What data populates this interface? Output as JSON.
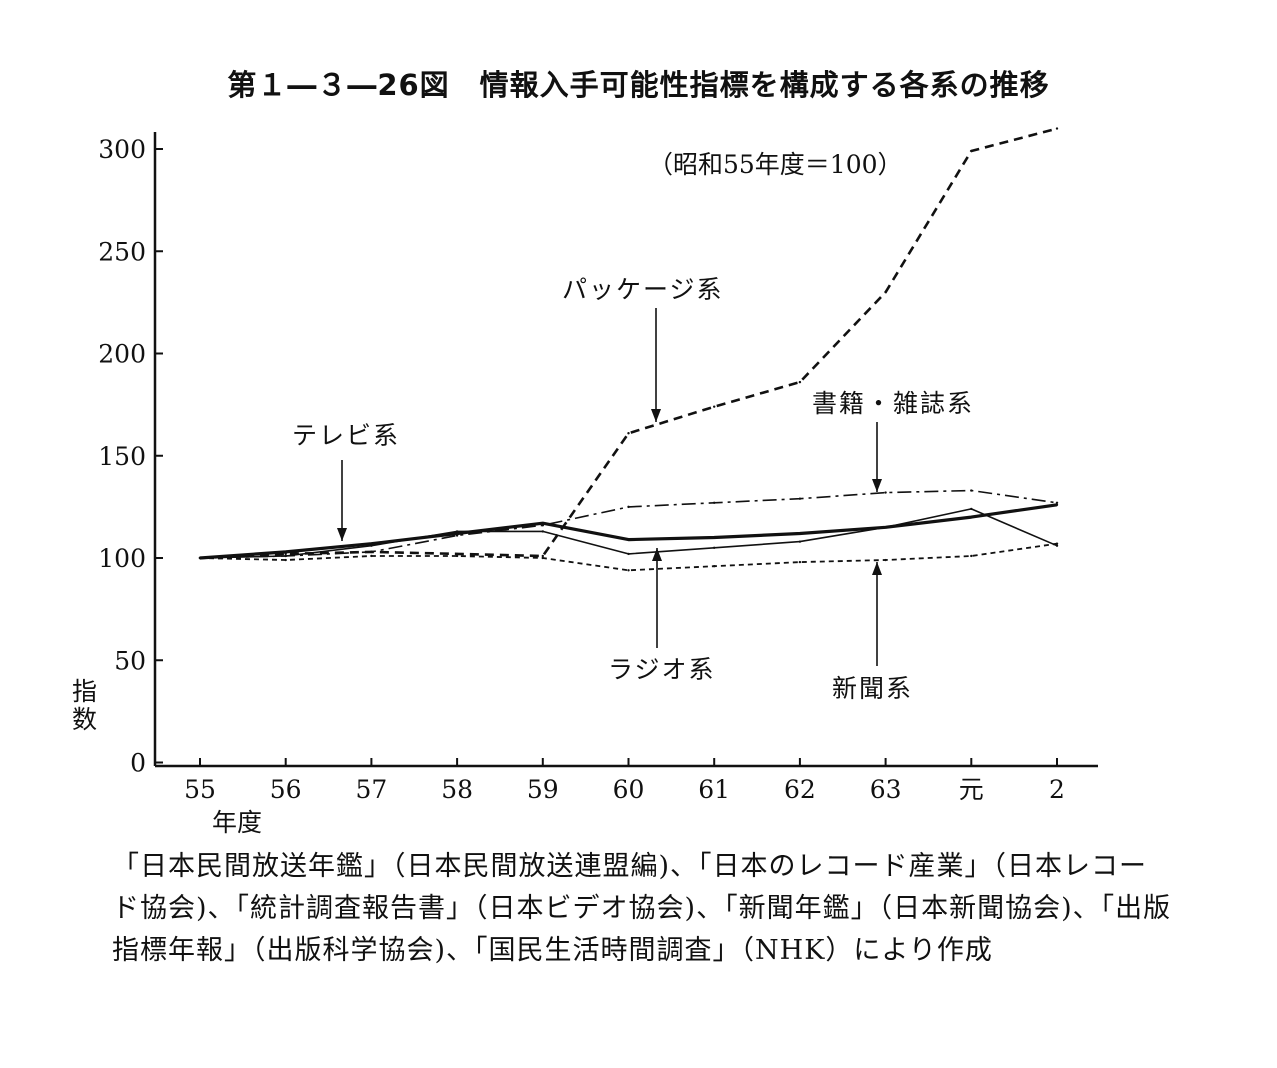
{
  "title": "第１―３―26図　情報入手可能性指標を構成する各系の推移",
  "source_note": "「日本民間放送年鑑」（日本民間放送連盟編)、「日本のレコード産業」（日本レコード協会)、「統計調査報告書」（日本ビデオ協会)、「新聞年鑑」（日本新聞協会)、「出版指標年報」（出版科学協会)、「国民生活時間調査」（NHK）により作成",
  "chart_data": {
    "type": "line",
    "annotation": "（昭和55年度＝100）",
    "xlabel": "年度",
    "ylabel": "指数",
    "categories": [
      "55",
      "56",
      "57",
      "58",
      "59",
      "60",
      "61",
      "62",
      "63",
      "元",
      "2"
    ],
    "y_ticks": [
      "0",
      "50",
      "100",
      "150",
      "200",
      "250",
      "300"
    ],
    "ylim": [
      0,
      300
    ],
    "grid": false,
    "series": [
      {
        "name": "パッケージ系",
        "style": "dashed",
        "values": [
          100,
          102,
          103,
          102,
          101,
          161,
          174,
          186,
          230,
          299,
          310
        ]
      },
      {
        "name": "書籍・雑誌系",
        "style": "dash-dot",
        "values": [
          100,
          101,
          103,
          111,
          116,
          125,
          127,
          129,
          132,
          133,
          127
        ]
      },
      {
        "name": "テレビ系",
        "style": "solid-thick",
        "values": [
          100,
          103,
          107,
          112,
          117,
          109,
          110,
          112,
          115,
          120,
          126
        ]
      },
      {
        "name": "ラジオ系",
        "style": "solid-thin",
        "values": [
          100,
          101,
          106,
          113,
          113,
          102,
          105,
          108,
          115,
          124,
          106
        ]
      },
      {
        "name": "新聞系",
        "style": "short-dashed",
        "values": [
          100,
          99,
          101,
          101,
          100,
          94,
          96,
          98,
          99,
          101,
          107
        ]
      }
    ],
    "callouts": [
      {
        "series": "パッケージ系",
        "text": "パッケージ系"
      },
      {
        "series": "書籍・雑誌系",
        "text": "書籍・雑誌系"
      },
      {
        "series": "テレビ系",
        "text": "テレビ系"
      },
      {
        "series": "ラジオ系",
        "text": "ラジオ系"
      },
      {
        "series": "新聞系",
        "text": "新聞系"
      }
    ]
  }
}
